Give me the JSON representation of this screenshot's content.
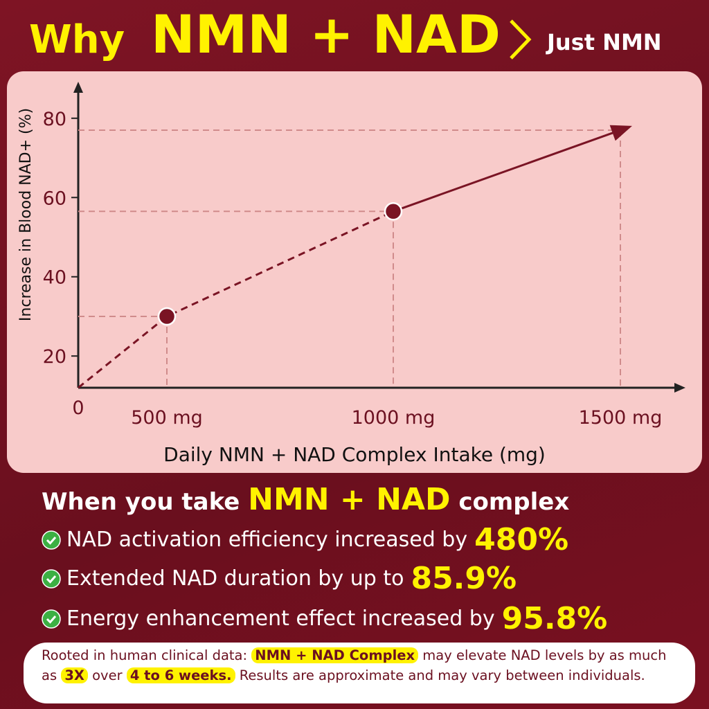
{
  "header": {
    "lead": "Why",
    "highlight": "NMN + NAD",
    "compare": "Just NMN"
  },
  "chart_data": {
    "type": "line",
    "x_label": "Daily NMN + NAD Complex Intake (mg)",
    "y_label": "Increase in Blood NAD+ (%)",
    "categories": [
      "0",
      "500 mg",
      "1000 mg",
      "1500 mg"
    ],
    "values": [
      12,
      30,
      56.5,
      77
    ],
    "color": "#7a1424",
    "ylim": [
      12,
      88
    ],
    "yticks": [
      20,
      40,
      60,
      80
    ]
  },
  "benefits": {
    "heading": {
      "lead": "When you take",
      "highlight": "NMN + NAD",
      "tail": "complex"
    },
    "items": [
      {
        "text": "NAD activation efficiency increased by",
        "value": "480%"
      },
      {
        "text": "Extended NAD duration by up to",
        "value": "85.9%"
      },
      {
        "text": "Energy enhancement effect increased by",
        "value": "95.8%"
      }
    ]
  },
  "note": [
    "Rooted in human clinical data:",
    "NMN + NAD Complex",
    "may elevate NAD levels by as much as",
    "3X",
    "over",
    "4 to 6 weeks.",
    "Results are approximate and may vary between individuals."
  ]
}
